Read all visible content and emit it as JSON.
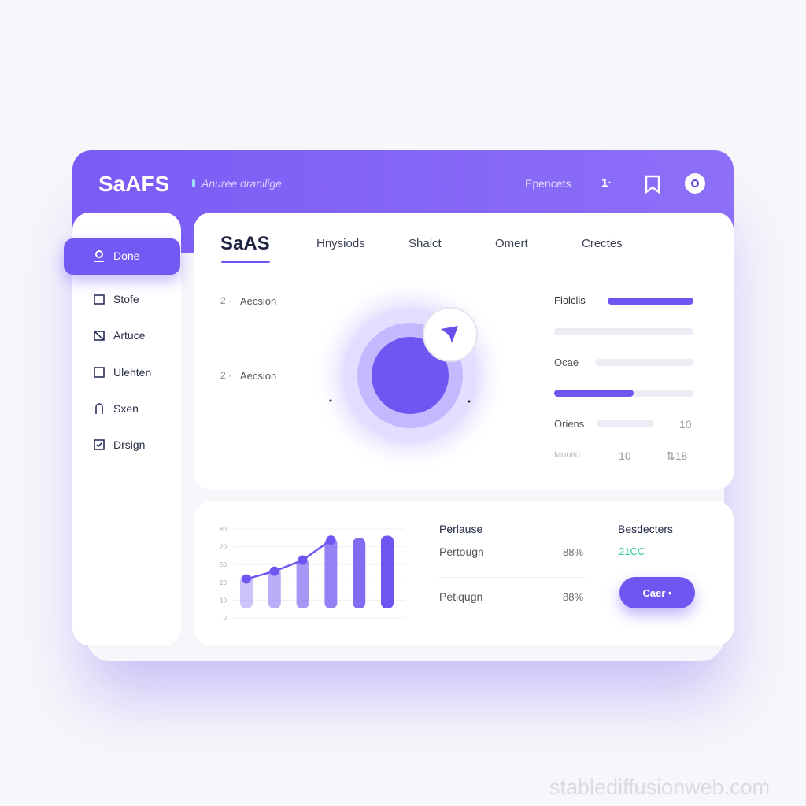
{
  "header": {
    "title": "SaAFS",
    "subtitle": "Anuree dranilige",
    "link": "Epencets",
    "badge": "1·"
  },
  "sidebar": {
    "items": [
      "Done",
      "Stofe",
      "Artuce",
      "Ulehten",
      "Sxen",
      "Drsign"
    ]
  },
  "tabs": [
    "SaAS",
    "Hnysiods",
    "Shaict",
    "Omert",
    "Crectes"
  ],
  "overview": {
    "items": [
      {
        "index": "2 ·",
        "label": "Aecsion"
      },
      {
        "index": "2 ·",
        "label": "Aecsion"
      }
    ],
    "stats": [
      {
        "label": "Fiolclis"
      },
      {
        "label": "Ocae"
      },
      {
        "label": "Oriens",
        "value": 10
      },
      {
        "label": "Mouitd",
        "value": 10,
        "extra": "⇅18"
      }
    ]
  },
  "mini_chart": {
    "type": "bar-line",
    "y_labels": [
      80,
      20,
      50,
      20,
      10,
      0
    ],
    "bars": [
      39,
      45,
      53,
      72,
      72,
      74
    ],
    "line": [
      35,
      42,
      52,
      70
    ],
    "color": "#7056f0"
  },
  "performance": {
    "title": "Perlause",
    "rows": [
      {
        "label": "Pertougn",
        "value": "88%"
      },
      {
        "label": "Petiqugn",
        "value": "88%"
      }
    ]
  },
  "summary": {
    "title": "Besdecters",
    "value": "21CC",
    "button": "Caer •"
  },
  "watermark": "stablediffusionweb.com"
}
